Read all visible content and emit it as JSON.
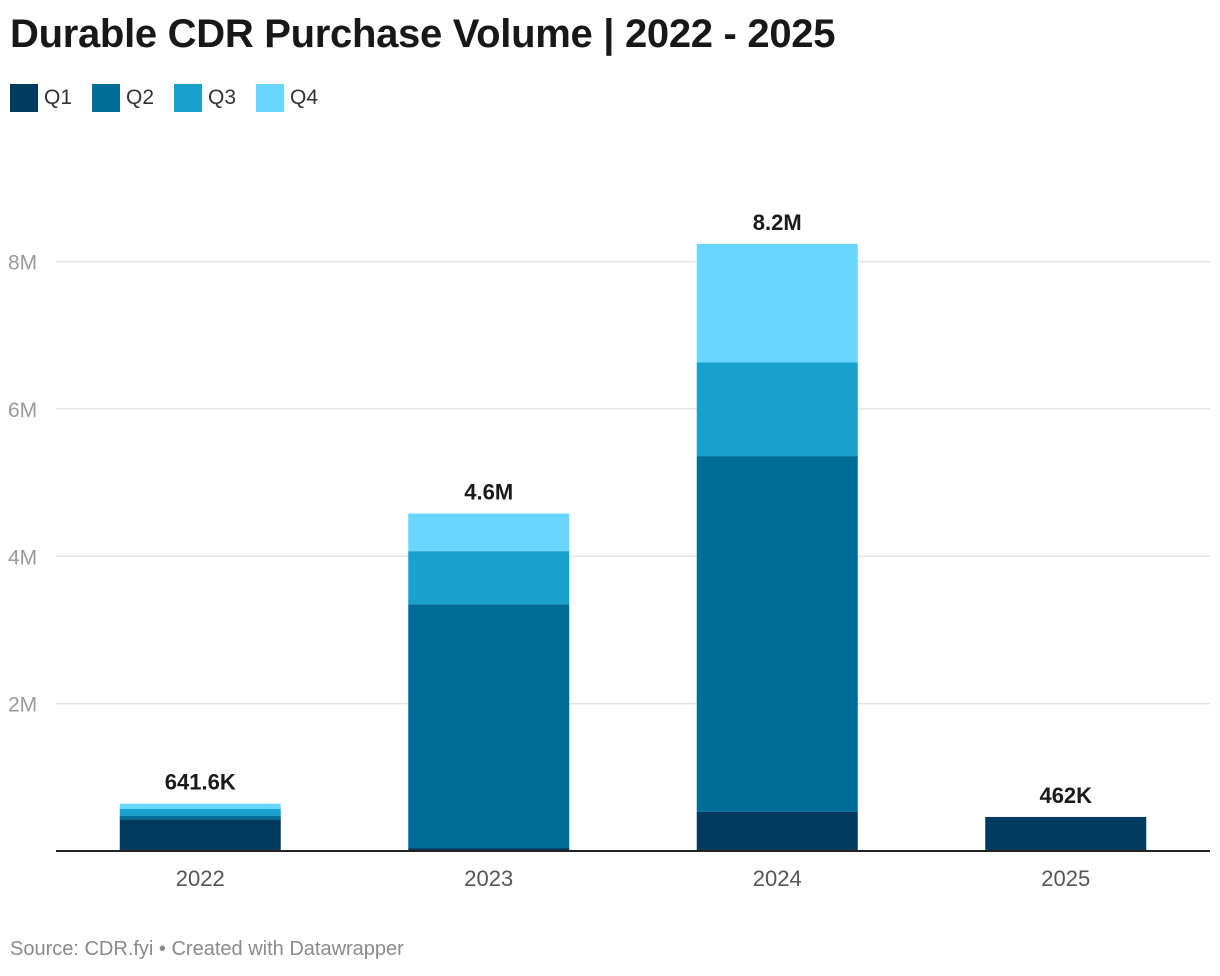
{
  "chart_data": {
    "type": "bar",
    "stacked": true,
    "title": "Durable CDR Purchase Volume | 2022 - 2025",
    "categories": [
      "2022",
      "2023",
      "2024",
      "2025"
    ],
    "series": [
      {
        "name": "Q1",
        "color": "#003a5e",
        "values": [
          430000,
          40000,
          530000,
          462000
        ]
      },
      {
        "name": "Q2",
        "color": "#006d99",
        "values": [
          50000,
          3310000,
          4830000,
          0
        ]
      },
      {
        "name": "Q3",
        "color": "#18a1cc",
        "values": [
          90000,
          720000,
          1270000,
          0
        ]
      },
      {
        "name": "Q4",
        "color": "#69d6ff",
        "values": [
          71600,
          510000,
          1610000,
          0
        ]
      }
    ],
    "totals_labels": [
      "641.6K",
      "4.6M",
      "8.2M",
      "462K"
    ],
    "y_ticks": [
      2000000,
      4000000,
      6000000,
      8000000
    ],
    "y_tick_labels": [
      "2M",
      "4M",
      "6M",
      "8M"
    ],
    "ylim": [
      0,
      8700000
    ],
    "xlabel": "",
    "ylabel": "",
    "grid": true,
    "legend_position": "top-left"
  },
  "footer": {
    "text": "Source: CDR.fyi • Created with Datawrapper"
  }
}
